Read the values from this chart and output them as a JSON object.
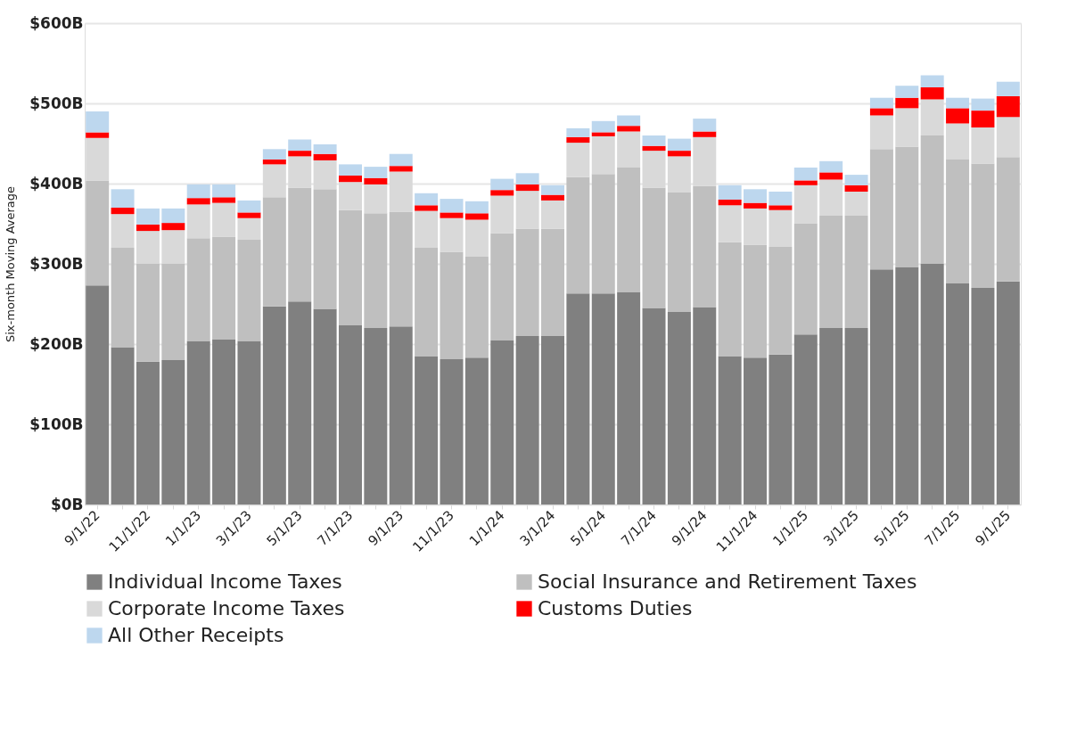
{
  "chart_data": {
    "type": "bar",
    "stacked": true,
    "ylabel": "Six-month Moving Average",
    "categories": [
      "9/1/22",
      null,
      "11/1/22",
      null,
      "1/1/23",
      null,
      "3/1/23",
      null,
      "5/1/23",
      null,
      "7/1/23",
      null,
      "9/1/23",
      null,
      "11/1/23",
      null,
      "1/1/24",
      null,
      "3/1/24",
      null,
      "5/1/24",
      null,
      "7/1/24",
      null,
      "9/1/24",
      null,
      "11/1/24",
      null,
      "1/1/25",
      null,
      "3/1/25",
      null,
      "5/1/25",
      null,
      "7/1/25",
      null,
      "9/1/25"
    ],
    "series": [
      {
        "name": "Individual Income Taxes",
        "color": "#808080",
        "values": [
          273,
          196,
          178,
          180,
          204,
          206,
          204,
          247,
          253,
          244,
          224,
          220,
          222,
          185,
          181,
          183,
          205,
          210,
          210,
          263,
          263,
          265,
          245,
          240,
          246,
          185,
          183,
          187,
          212,
          220,
          220,
          293,
          296,
          300,
          276,
          270,
          278
        ]
      },
      {
        "name": "Social Insurance and Retirement Taxes",
        "color": "#bfbfbf",
        "values": [
          131,
          124,
          122,
          120,
          128,
          128,
          126,
          136,
          142,
          149,
          143,
          143,
          143,
          135,
          134,
          126,
          133,
          134,
          134,
          145,
          149,
          155,
          150,
          149,
          151,
          142,
          141,
          134,
          138,
          140,
          140,
          150,
          150,
          160,
          154,
          155,
          155
        ]
      },
      {
        "name": "Corporate Income Taxes",
        "color": "#d9d9d9",
        "values": [
          53,
          42,
          41,
          42,
          42,
          42,
          27,
          41,
          39,
          36,
          35,
          36,
          50,
          46,
          42,
          46,
          47,
          47,
          35,
          43,
          47,
          45,
          46,
          45,
          61,
          46,
          45,
          46,
          48,
          45,
          30,
          42,
          48,
          45,
          45,
          45,
          50
        ]
      },
      {
        "name": "Customs Duties",
        "color": "#ff0000",
        "values": [
          7,
          8,
          8,
          9,
          8,
          7,
          7,
          6,
          7,
          8,
          8,
          8,
          7,
          7,
          7,
          8,
          7,
          8,
          7,
          7,
          5,
          7,
          6,
          7,
          7,
          7,
          7,
          6,
          6,
          9,
          8,
          9,
          13,
          15,
          19,
          21,
          26
        ]
      },
      {
        "name": "All Other Receipts",
        "color": "#bdd7ee",
        "values": [
          26,
          23,
          20,
          18,
          17,
          16,
          15,
          13,
          14,
          12,
          14,
          14,
          15,
          15,
          17,
          15,
          14,
          14,
          12,
          11,
          14,
          13,
          13,
          15,
          16,
          18,
          17,
          17,
          16,
          14,
          13,
          13,
          15,
          15,
          13,
          15,
          18
        ]
      }
    ],
    "ylim": [
      0,
      600
    ],
    "yticks": [
      {
        "value": 0,
        "label": "$0B"
      },
      {
        "value": 100,
        "label": "$100B"
      },
      {
        "value": 200,
        "label": "$200B"
      },
      {
        "value": 300,
        "label": "$300B"
      },
      {
        "value": 400,
        "label": "$400B"
      },
      {
        "value": 500,
        "label": "$500B"
      },
      {
        "value": 600,
        "label": "$600B"
      }
    ],
    "grid": "y",
    "legend": "bottom"
  }
}
